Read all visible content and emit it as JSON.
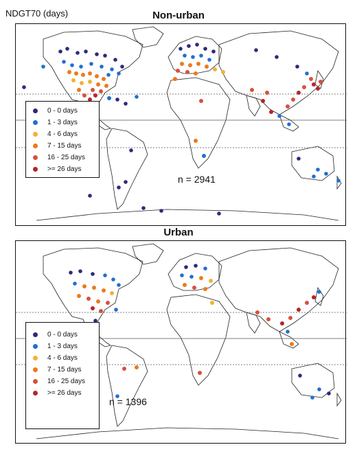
{
  "figure": {
    "variable_label": "NDGT70 (days)"
  },
  "legend": [
    {
      "label": "0 - 0  days",
      "color": "#2e2a7a"
    },
    {
      "label": "1 - 3  days",
      "color": "#1f6fd0"
    },
    {
      "label": "4 - 6  days",
      "color": "#f2b233"
    },
    {
      "label": "7 - 15  days",
      "color": "#ec7a1c"
    },
    {
      "label": "16 - 25  days",
      "color": "#d6513d"
    },
    {
      "label": ">= 26  days",
      "color": "#b5252a"
    }
  ],
  "panels": [
    {
      "id": "non-urban",
      "title": "Non-urban",
      "count_label": "n = 2941"
    },
    {
      "id": "urban",
      "title": "Urban",
      "count_label": "n = 1396"
    }
  ]
}
